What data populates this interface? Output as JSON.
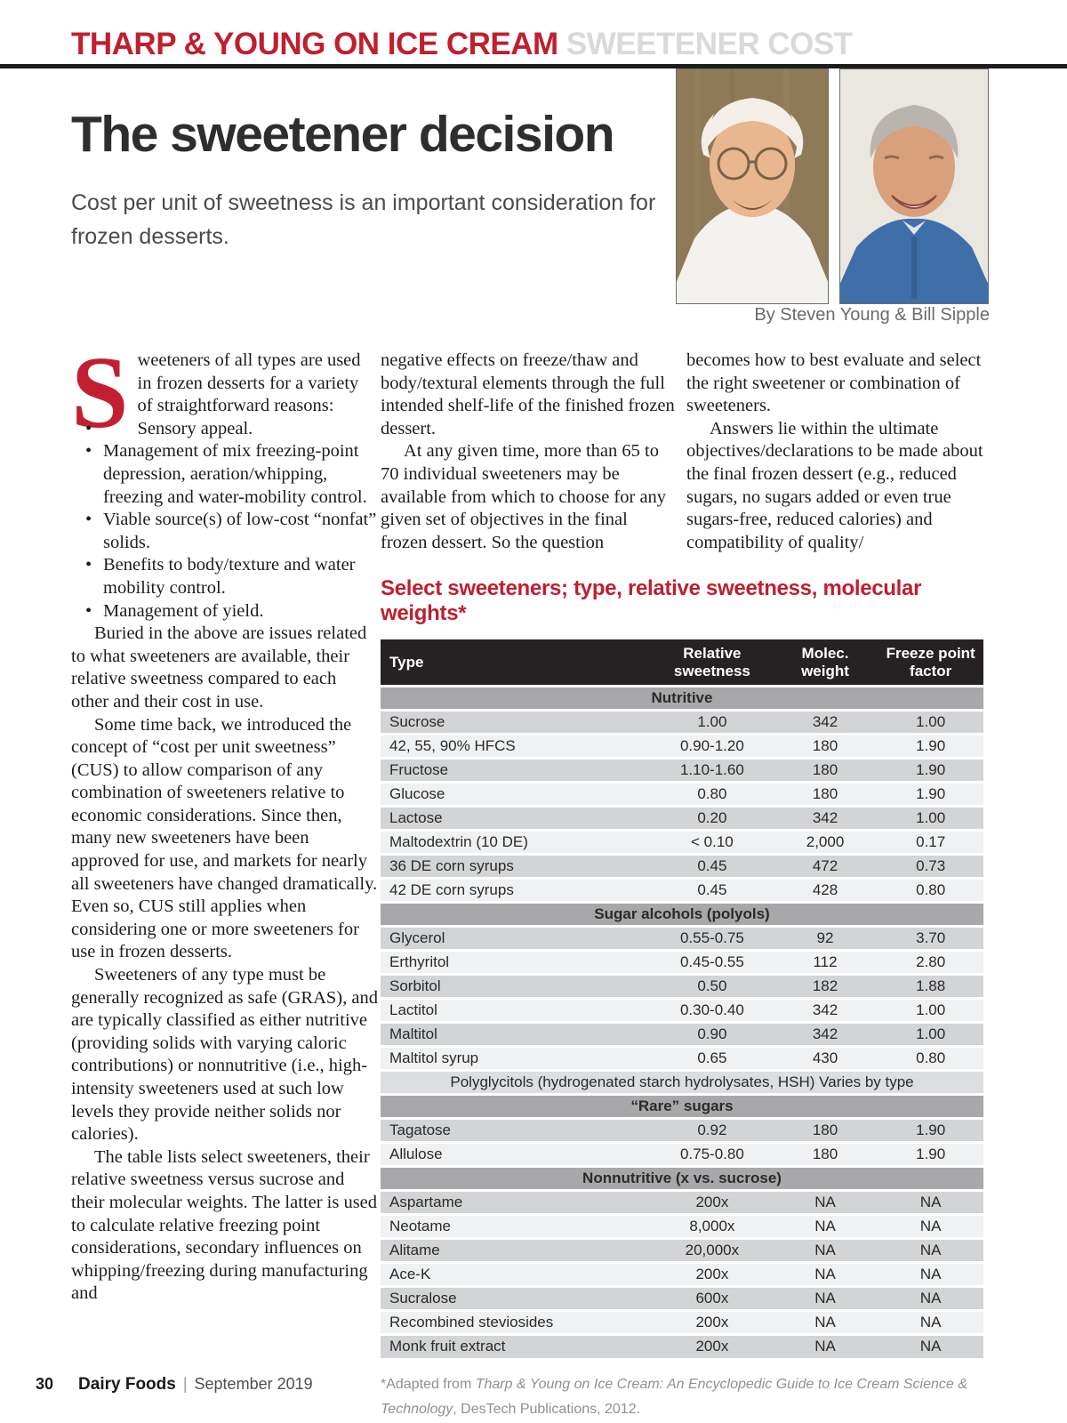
{
  "header": {
    "kicker_red": "THARP & YOUNG ON ICE CREAM",
    "kicker_gray": " SWEETENER COST"
  },
  "article": {
    "title": "The sweetener decision",
    "subtitle": "Cost per unit of sweetness is an important consideration for frozen desserts.",
    "byline": "By Steven Young & Bill Sipple",
    "drop_cap": "S",
    "intro_rest": "weeteners of all types are used in frozen desserts for a variety of straightforward reasons:",
    "bullets": [
      "Sensory appeal.",
      "Management of mix freezing-point depression, aeration/whipping, freezing and water-mobility control.",
      "Viable source(s) of low-cost “nonfat” solids.",
      "Benefits to body/texture and water mobility control.",
      "Management of yield."
    ],
    "col1_paragraphs": [
      {
        "text": "Buried in the above are issues related to what sweeteners are available, their relative sweetness compared to each other and their cost in use.",
        "indent": true
      },
      {
        "text": "Some time back, we introduced the concept of “cost per unit sweetness” (CUS) to allow comparison of any combination of sweeteners relative to economic considerations. Since then, many new sweeteners have been approved for use, and markets for nearly all sweeteners have changed dramatically. Even so, CUS still applies when considering one or more sweeteners for use in frozen desserts.",
        "indent": true
      },
      {
        "text": "Sweeteners of any type must be generally recognized as safe (GRAS), and are typically classified as either nutritive (providing solids with varying caloric contributions) or nonnutritive (i.e., high-intensity sweeteners used at such low levels they provide neither solids nor calories).",
        "indent": true
      },
      {
        "text": "The table lists select sweeteners, their relative sweetness versus sucrose and their molecular weights. The latter is used to calculate relative freezing point considerations, secondary influences on whipping/freezing during manufacturing and",
        "indent": true
      }
    ],
    "col2_paragraphs": [
      {
        "text": "negative effects on freeze/thaw and body/textural elements through the full intended shelf-life of the finished frozen dessert.",
        "indent": false
      },
      {
        "text": "At any given time, more than 65 to 70 individual sweeteners may be available from which to choose for any given set of objectives in the final frozen dessert. So the question",
        "indent": true
      }
    ],
    "col3_paragraphs": [
      {
        "text": "becomes how to best evaluate and select the right sweetener or combination of sweeteners.",
        "indent": false
      },
      {
        "text": "Answers lie within the ultimate objectives/declarations to be made about the final frozen dessert (e.g., reduced sugars, no sugars added or even true sugars-free, reduced calories) and compatibility of quality/",
        "indent": true
      }
    ]
  },
  "table": {
    "title": "Select sweeteners; type, relative sweetness, molecular weights*",
    "columns": [
      "Type",
      "Relative sweetness",
      "Molec. weight",
      "Freeze point factor"
    ],
    "sections": [
      {
        "name": "Nutritive",
        "rows": [
          [
            "Sucrose",
            "1.00",
            "342",
            "1.00"
          ],
          [
            "42, 55, 90% HFCS",
            "0.90-1.20",
            "180",
            "1.90"
          ],
          [
            "Fructose",
            "1.10-1.60",
            "180",
            "1.90"
          ],
          [
            "Glucose",
            "0.80",
            "180",
            "1.90"
          ],
          [
            "Lactose",
            "0.20",
            "342",
            "1.00"
          ],
          [
            "Maltodextrin (10 DE)",
            "< 0.10",
            "2,000",
            "0.17"
          ],
          [
            "36 DE corn syrups",
            "0.45",
            "472",
            "0.73"
          ],
          [
            "42 DE corn syrups",
            "0.45",
            "428",
            "0.80"
          ]
        ]
      },
      {
        "name": "Sugar alcohols (polyols)",
        "rows": [
          [
            "Glycerol",
            "0.55-0.75",
            "92",
            "3.70"
          ],
          [
            "Erthyritol",
            "0.45-0.55",
            "112",
            "2.80"
          ],
          [
            "Sorbitol",
            "0.50",
            "182",
            "1.88"
          ],
          [
            "Lactitol",
            "0.30-0.40",
            "342",
            "1.00"
          ],
          [
            "Maltitol",
            "0.90",
            "342",
            "1.00"
          ],
          [
            "Maltitol syrup",
            "0.65",
            "430",
            "0.80"
          ]
        ],
        "note": "Polyglycitols (hydrogenated starch hydrolysates, HSH) Varies by type"
      },
      {
        "name": "“Rare” sugars",
        "rows": [
          [
            "Tagatose",
            "0.92",
            "180",
            "1.90"
          ],
          [
            "Allulose",
            "0.75-0.80",
            "180",
            "1.90"
          ]
        ]
      },
      {
        "name": "Nonnutritive (x vs. sucrose)",
        "rows": [
          [
            "Aspartame",
            "200x",
            "NA",
            "NA"
          ],
          [
            "Neotame",
            "8,000x",
            "NA",
            "NA"
          ],
          [
            "Alitame",
            "20,000x",
            "NA",
            "NA"
          ],
          [
            "Ace-K",
            "200x",
            "NA",
            "NA"
          ],
          [
            "Sucralose",
            "600x",
            "NA",
            "NA"
          ],
          [
            "Recombined steviosides",
            "200x",
            "NA",
            "NA"
          ],
          [
            "Monk fruit extract",
            "200x",
            "NA",
            "NA"
          ]
        ]
      }
    ],
    "footnote_prefix": "*Adapted from ",
    "footnote_italic": "Tharp & Young on Ice Cream: An Encyclopedic Guide to Ice Cream Science & Technology",
    "footnote_suffix": ", DesTech Publications, 2012."
  },
  "footer": {
    "page_number": "30",
    "magazine": "Dairy Foods",
    "separator": "|",
    "issue": "September 2019"
  },
  "colors": {
    "accent_red": "#bf1f2e",
    "kicker_gray": "#d9d9d9",
    "table_header_bg": "#262223",
    "section_row_bg": "#a8a8aa",
    "row_dark": "#d2d4d6",
    "row_light": "#f0f1f2",
    "note_row_bg": "#dcdee0"
  }
}
